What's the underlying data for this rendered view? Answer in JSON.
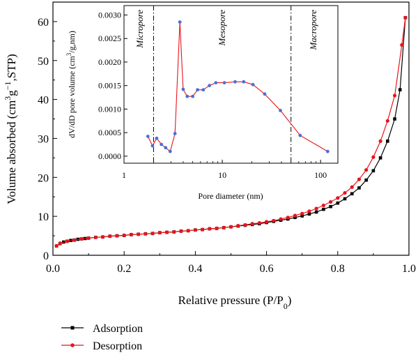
{
  "chart_data": [
    {
      "type": "line",
      "xlabel": "Relative pressure (P/P",
      "xlabel_sub": "0",
      "xlabel_end": ")",
      "ylabel": "Volume absorbed (cm",
      "ylabel_sup1": "3",
      "ylabel_mid": "g",
      "ylabel_sup2": "−1",
      "ylabel_end": ",STP)",
      "xlim": [
        0,
        1.0
      ],
      "ylim": [
        0,
        65
      ],
      "xticks": [
        0.0,
        0.2,
        0.4,
        0.6,
        0.8,
        1.0
      ],
      "xtick_labels": [
        "0.0",
        "0.2",
        "0.4",
        "0.6",
        "0.8",
        "1.0"
      ],
      "yticks": [
        0,
        10,
        20,
        30,
        40,
        50,
        60
      ],
      "ytick_labels": [
        "0",
        "10",
        "20",
        "30",
        "40",
        "50",
        "60"
      ],
      "legend": "bottom-left, outside plot",
      "series": [
        {
          "name": "Adsorption",
          "color": "#000000",
          "marker": "square",
          "x": [
            0.01,
            0.02,
            0.03,
            0.04,
            0.05,
            0.06,
            0.07,
            0.08,
            0.09,
            0.1,
            0.12,
            0.14,
            0.16,
            0.18,
            0.2,
            0.22,
            0.24,
            0.26,
            0.28,
            0.3,
            0.32,
            0.34,
            0.36,
            0.38,
            0.4,
            0.42,
            0.44,
            0.46,
            0.48,
            0.5,
            0.52,
            0.54,
            0.56,
            0.58,
            0.6,
            0.62,
            0.64,
            0.66,
            0.68,
            0.7,
            0.72,
            0.74,
            0.76,
            0.78,
            0.8,
            0.82,
            0.84,
            0.86,
            0.88,
            0.9,
            0.92,
            0.94,
            0.96,
            0.975,
            0.99
          ],
          "y": [
            2.4,
            3.0,
            3.4,
            3.6,
            3.8,
            3.9,
            4.1,
            4.2,
            4.3,
            4.4,
            4.6,
            4.7,
            4.9,
            5.0,
            5.1,
            5.3,
            5.4,
            5.5,
            5.6,
            5.8,
            5.9,
            6.0,
            6.2,
            6.3,
            6.5,
            6.6,
            6.8,
            6.9,
            7.1,
            7.3,
            7.5,
            7.7,
            7.9,
            8.1,
            8.4,
            8.7,
            9.0,
            9.3,
            9.7,
            10.1,
            10.6,
            11.1,
            11.8,
            12.5,
            13.4,
            14.5,
            15.8,
            17.3,
            19.3,
            21.7,
            25.0,
            29.3,
            35.0,
            42.5,
            61.0
          ]
        },
        {
          "name": "Desorption",
          "color": "#e8141c",
          "marker": "circle",
          "x": [
            0.99,
            0.98,
            0.96,
            0.94,
            0.92,
            0.9,
            0.88,
            0.86,
            0.84,
            0.82,
            0.8,
            0.78,
            0.76,
            0.74,
            0.72,
            0.7,
            0.68,
            0.66,
            0.64,
            0.62,
            0.6,
            0.58,
            0.56,
            0.54,
            0.52,
            0.5,
            0.48,
            0.46,
            0.44,
            0.42,
            0.4,
            0.38,
            0.36,
            0.34,
            0.32,
            0.3,
            0.28,
            0.26,
            0.24,
            0.22,
            0.2,
            0.18,
            0.16,
            0.14,
            0.12,
            0.1,
            0.08,
            0.06,
            0.04,
            0.02,
            0.01
          ],
          "y": [
            61.0,
            54.0,
            41.0,
            34.5,
            29.3,
            25.2,
            21.9,
            19.5,
            17.5,
            16.0,
            14.7,
            13.7,
            12.8,
            12.0,
            11.3,
            10.7,
            10.2,
            9.7,
            9.3,
            8.9,
            8.6,
            8.3,
            8.1,
            7.8,
            7.6,
            7.3,
            7.1,
            6.9,
            6.8,
            6.6,
            6.5,
            6.3,
            6.2,
            6.0,
            5.9,
            5.8,
            5.6,
            5.5,
            5.4,
            5.3,
            5.1,
            5.0,
            4.9,
            4.7,
            4.6,
            4.4,
            4.2,
            3.9,
            3.6,
            3.1,
            2.4
          ]
        }
      ]
    },
    {
      "type": "line",
      "inset": true,
      "xlabel": "Pore diameter (nm)",
      "ylabel": "dV/dD pore volume (cm",
      "ylabel_sup": "3",
      "ylabel_end": "/g,nm)",
      "xscale": "log",
      "xlim": [
        1,
        150
      ],
      "ylim": [
        -0.00015,
        0.0032
      ],
      "xticks": [
        1,
        10,
        100
      ],
      "xtick_labels": [
        "1",
        "10",
        "100"
      ],
      "yticks": [
        0,
        0.0005,
        0.001,
        0.0015,
        0.002,
        0.0025,
        0.003
      ],
      "ytick_labels": [
        "0.0000",
        "0.0005",
        "0.0010",
        "0.0015",
        "0.0020",
        "0.0025",
        "0.0030"
      ],
      "boundaries": [
        2,
        50
      ],
      "regions": [
        "Micropore",
        "Mesopore",
        "Macropore"
      ],
      "series": [
        {
          "color": "#e8141c",
          "marker_color": "#4a6fd6",
          "x": [
            1.75,
            1.95,
            2.15,
            2.4,
            2.65,
            2.95,
            3.3,
            3.7,
            4.0,
            4.4,
            5.0,
            5.6,
            6.4,
            7.4,
            8.6,
            10.5,
            13.5,
            16.5,
            20.5,
            27.0,
            39.0,
            62.0,
            118.0
          ],
          "y": [
            0.00042,
            0.00022,
            0.00038,
            0.00025,
            0.00018,
            0.0001,
            0.00048,
            0.00285,
            0.00142,
            0.00127,
            0.00127,
            0.00141,
            0.00141,
            0.0015,
            0.00156,
            0.00156,
            0.00158,
            0.00158,
            0.00152,
            0.00132,
            0.00097,
            0.00044,
            0.0001
          ]
        }
      ]
    }
  ]
}
